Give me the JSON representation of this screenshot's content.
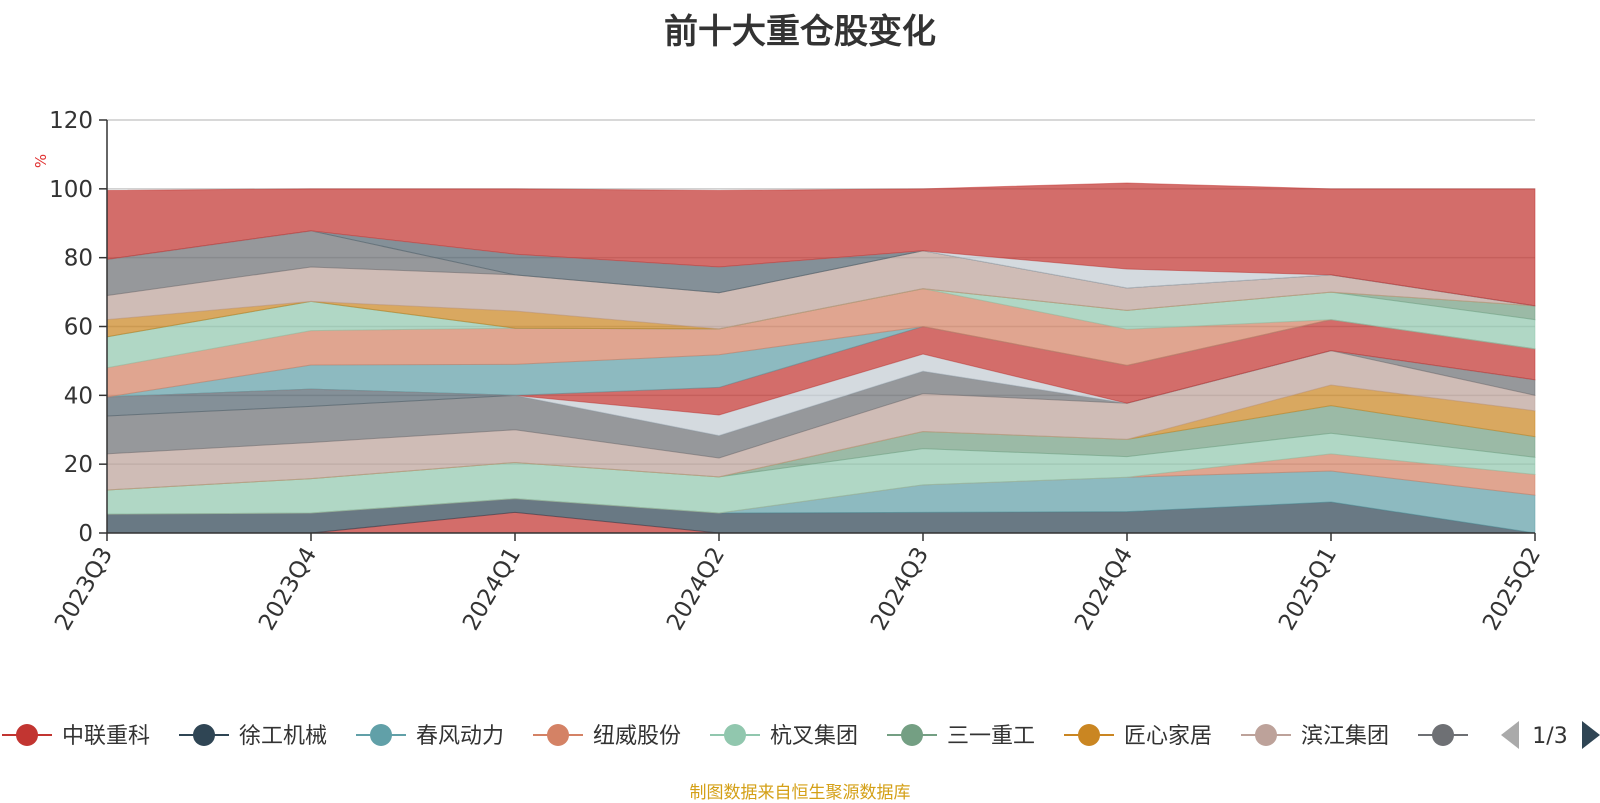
{
  "title": "前十大重仓股变化",
  "source_note": "制图数据来自恒生聚源数据库",
  "legend_page": "1/3",
  "chart_data": {
    "type": "area",
    "stacked": true,
    "title": "前十大重仓股变化",
    "ylabel": "%",
    "ylim": [
      0,
      120
    ],
    "yticks": [
      0,
      20,
      40,
      60,
      80,
      100,
      120
    ],
    "grid": true,
    "legend_position": "bottom",
    "categories": [
      "2023Q3",
      "2023Q4",
      "2024Q1",
      "2024Q2",
      "2024Q3",
      "2024Q4",
      "2025Q1",
      "2025Q2"
    ],
    "series": [
      {
        "name": "中联重科",
        "color": "#c23531",
        "values": [
          0,
          0,
          6,
          0,
          0,
          0,
          0,
          0
        ]
      },
      {
        "name": "徐工机械",
        "color": "#2f4554",
        "values": [
          5.5,
          5.8,
          4.0,
          5.8,
          6.0,
          6.2,
          9.0,
          0
        ]
      },
      {
        "name": "春风动力",
        "color": "#61a0a8",
        "values": [
          0,
          0,
          0,
          0,
          8.0,
          10.0,
          9.0,
          11.0
        ]
      },
      {
        "name": "纽威股份",
        "color": "#d48265",
        "values": [
          0,
          0,
          0,
          0,
          0,
          0,
          5.0,
          6.0
        ]
      },
      {
        "name": "杭叉集团",
        "color": "#91c7ae",
        "values": [
          7.0,
          10.0,
          10.5,
          10.5,
          10.5,
          6.0,
          6.0,
          5.0
        ]
      },
      {
        "name": "三一重工",
        "color": "#749f83",
        "values": [
          0,
          0,
          0,
          0,
          5.0,
          5.0,
          8.0,
          6.0
        ]
      },
      {
        "name": "匠心家居",
        "color": "#ca8622",
        "values": [
          0,
          0,
          0,
          0,
          0,
          0,
          6.0,
          7.5
        ]
      },
      {
        "name": "滨江集团",
        "color": "#bda29a",
        "values": [
          10.5,
          10.5,
          9.5,
          5.5,
          11.0,
          10.5,
          10.0,
          4.5
        ]
      },
      {
        "name": "?",
        "color": "#6e7074",
        "values": [
          11.0,
          10.5,
          10.0,
          6.5,
          6.5,
          0,
          0,
          4.5
        ]
      },
      {
        "name": "",
        "color": "#546570",
        "values": [
          5.5,
          5.0,
          0,
          0,
          0,
          0,
          0,
          0
        ]
      },
      {
        "name": "",
        "color": "#c4ccd3",
        "values": [
          0,
          0,
          0,
          6.0,
          5.0,
          0,
          0,
          0
        ]
      },
      {
        "name": "",
        "color": "#c23531",
        "values": [
          0,
          0,
          0,
          8.0,
          8.0,
          11.0,
          9.0,
          9.0
        ]
      },
      {
        "name": "",
        "color": "#61a0a8",
        "values": [
          0,
          7.0,
          9.0,
          9.5,
          0,
          0,
          0,
          0
        ]
      },
      {
        "name": "",
        "color": "#d48265",
        "values": [
          8.5,
          10.0,
          10.5,
          7.5,
          11.0,
          10.5,
          0,
          0
        ]
      },
      {
        "name": "",
        "color": "#91c7ae",
        "values": [
          9.0,
          8.5,
          0,
          0,
          0,
          5.5,
          8.0,
          8.5
        ]
      },
      {
        "name": "",
        "color": "#749f83",
        "values": [
          0,
          0,
          0,
          0,
          0,
          0,
          0,
          4.0
        ]
      },
      {
        "name": "",
        "color": "#ca8622",
        "values": [
          5.0,
          0,
          5.0,
          0,
          0,
          0,
          0,
          0
        ]
      },
      {
        "name": "",
        "color": "#bda29a",
        "values": [
          7.0,
          10.0,
          10.5,
          10.5,
          11.0,
          6.5,
          5.0,
          0
        ]
      },
      {
        "name": "",
        "color": "#6e7074",
        "values": [
          10.5,
          10.5,
          0,
          0,
          0,
          0,
          0,
          0
        ]
      },
      {
        "name": "",
        "color": "#546570",
        "values": [
          0,
          0,
          6.0,
          7.5,
          0,
          0,
          0,
          0
        ]
      },
      {
        "name": "",
        "color": "#c4ccd3",
        "values": [
          0,
          0,
          0,
          0,
          0,
          5.5,
          0,
          0
        ]
      },
      {
        "name": "",
        "color": "#c23531",
        "values": [
          20.0,
          12.2,
          19.0,
          22.2,
          18.0,
          25.0,
          25.0,
          34.0
        ]
      }
    ]
  }
}
